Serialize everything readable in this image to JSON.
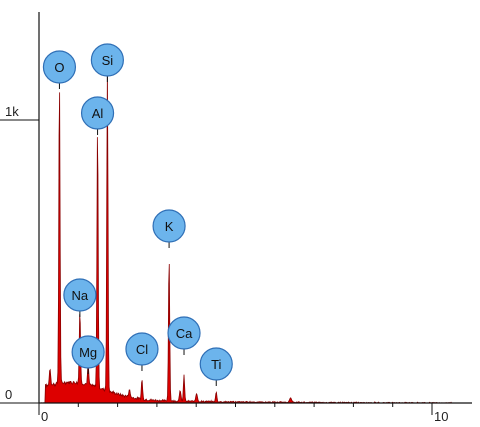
{
  "chart_data": {
    "type": "area",
    "title": "",
    "xlabel": "",
    "ylabel": "",
    "xlim": [
      0,
      10.5
    ],
    "ylim": [
      0,
      1300
    ],
    "x_ticks": [
      {
        "value": 0,
        "label": "0"
      },
      {
        "value": 10,
        "label": "10"
      }
    ],
    "y_ticks": [
      {
        "value": 0,
        "label": "0"
      },
      {
        "value": 1000,
        "label": "1k"
      }
    ],
    "grid": false,
    "colors": {
      "fill": "#dd0000",
      "stroke": "#8a0000",
      "marker_fill": "#6cb4ec",
      "marker_stroke": "#2f6fb6",
      "axis": "#111111"
    },
    "peaks": [
      {
        "label": "O",
        "energy": 0.52,
        "counts": 1080
      },
      {
        "label": "Si",
        "energy": 1.74,
        "counts": 1140
      },
      {
        "label": "Al",
        "energy": 1.49,
        "counts": 930
      },
      {
        "label": "K",
        "energy": 3.31,
        "counts": 510
      },
      {
        "label": "Na",
        "energy": 1.04,
        "counts": 260
      },
      {
        "label": "Mg",
        "energy": 1.25,
        "counts": 70
      },
      {
        "label": "Cl",
        "energy": 2.62,
        "counts": 70
      },
      {
        "label": "Ca",
        "energy": 3.69,
        "counts": 90
      },
      {
        "label": "Ti",
        "energy": 4.51,
        "counts": 35
      }
    ]
  }
}
